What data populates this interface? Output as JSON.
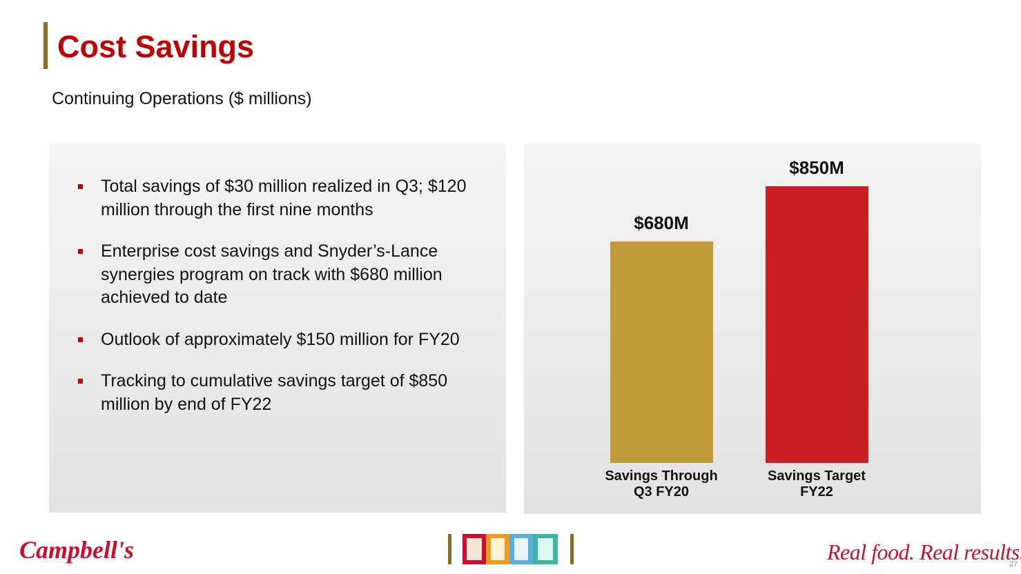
{
  "header": {
    "title": "Cost Savings",
    "subtitle": "Continuing Operations ($ millions)"
  },
  "bullets": [
    "Total savings of $30 million realized in Q3; $120 million through the first nine months",
    "Enterprise cost savings and Snyder’s-Lance synergies program on track with $680 million achieved to date",
    "Outlook of approximately $150 million for FY20",
    "Tracking to cumulative savings target of $850 million by end of FY22"
  ],
  "chart_data": {
    "type": "bar",
    "categories": [
      "Savings Through\nQ3 FY20",
      "Savings Target\nFY22"
    ],
    "values": [
      680,
      850
    ],
    "value_labels": [
      "$680M",
      "$850M"
    ],
    "colors": [
      "#bf9b3a",
      "#cc1f25"
    ]
  },
  "footer": {
    "logo": "Campbell's",
    "tagline": "Real food. Real results.",
    "page_number": "27"
  }
}
